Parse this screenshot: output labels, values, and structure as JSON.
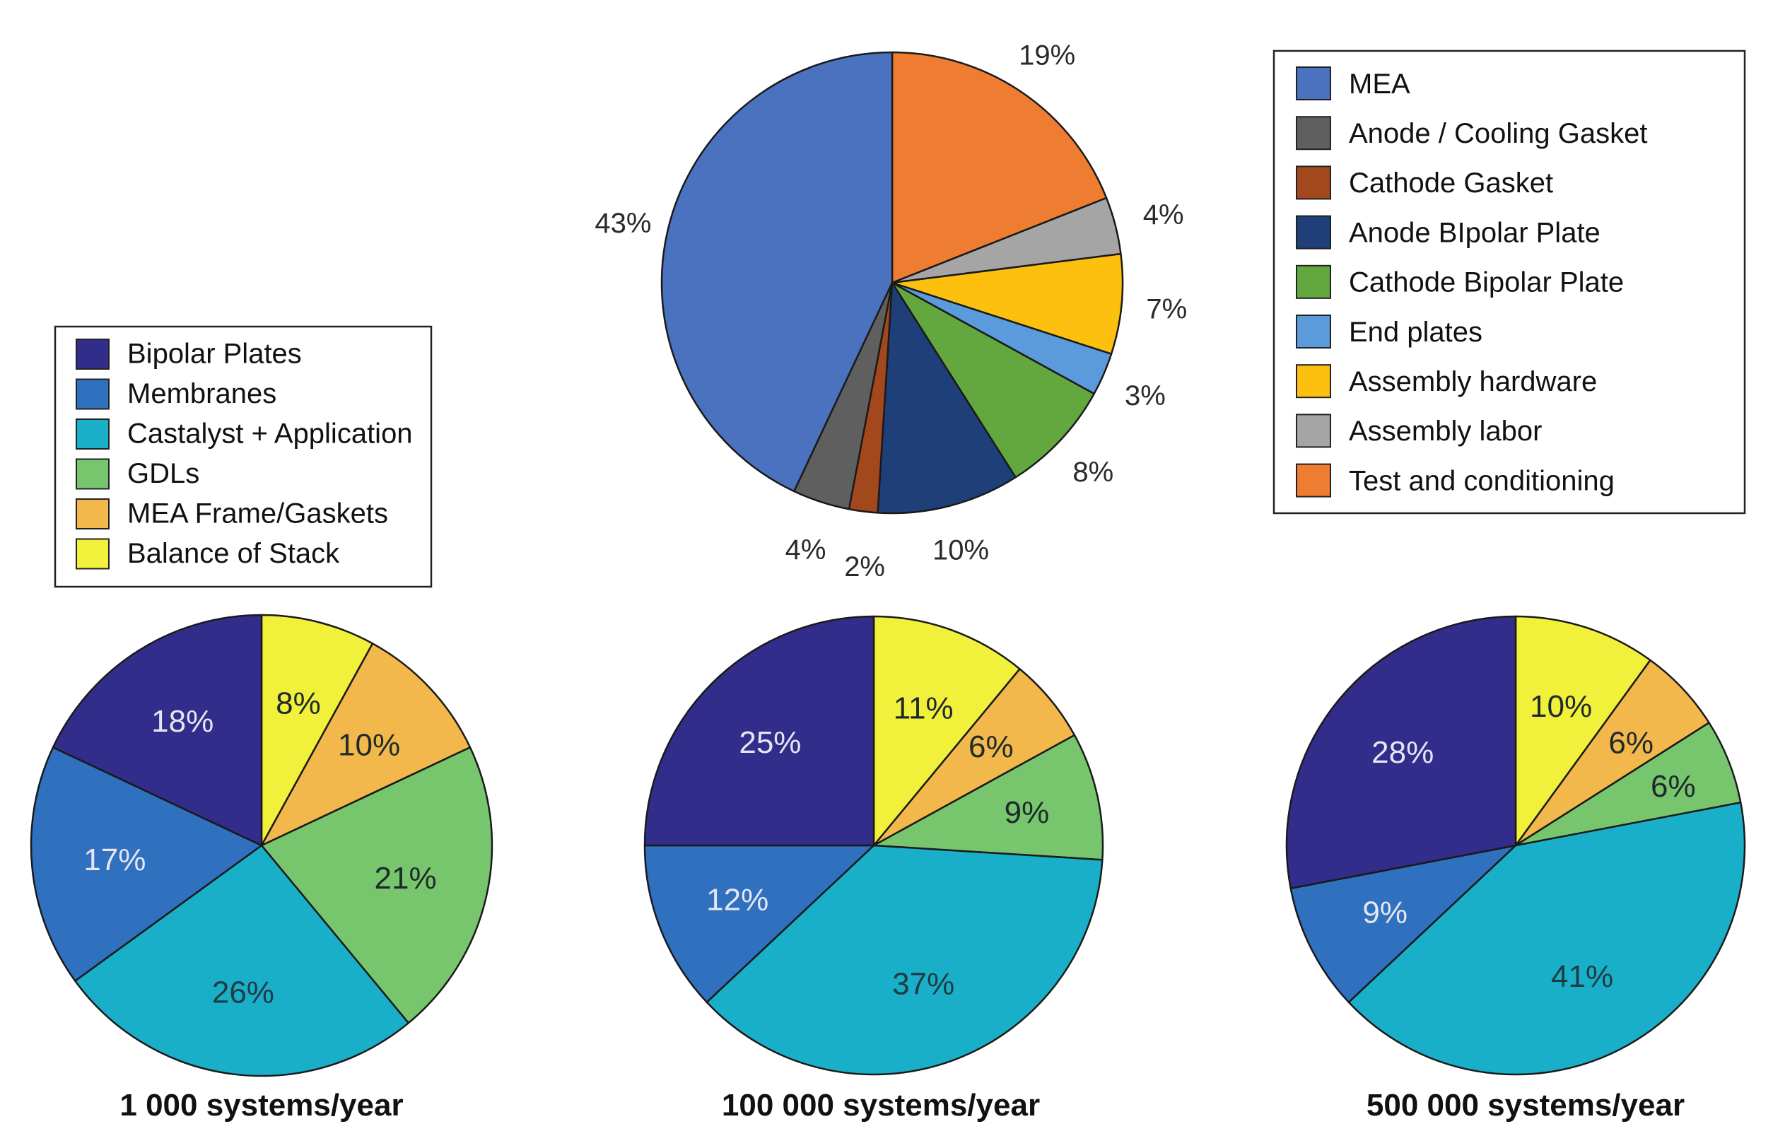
{
  "colors": {
    "MEA": "#4A72BE",
    "Anode / Cooling Gasket": "#5F5F5F",
    "Cathode Gasket": "#A3471C",
    "Anode BIpolar Plate": "#1F3F78",
    "Cathode Bipolar Plate": "#62A83F",
    "End plates": "#5B9BDB",
    "Assembly hardware": "#FDC00F",
    "Assembly labor": "#A5A5A5",
    "Test and conditioning": "#EE7D31",
    "Bipolar Plates": "#322D8A",
    "Membranes": "#2F70BF",
    "Castalyst + Application": "#1AAFC8",
    "GDLs": "#77C66E",
    "MEA Frame/Gaskets": "#F2B84B",
    "Balance of Stack": "#F1F03A"
  },
  "chart_data": [
    {
      "type": "pie",
      "id": "stack-assembly",
      "title": "",
      "categories": [
        "Test and conditioning",
        "Assembly labor",
        "Assembly hardware",
        "End plates",
        "Cathode Bipolar Plate",
        "Anode BIpolar Plate",
        "Cathode Gasket",
        "Anode / Cooling Gasket",
        "MEA"
      ],
      "values": [
        19,
        4,
        7,
        3,
        8,
        10,
        2,
        4,
        43
      ],
      "labels": [
        "19%",
        "4%",
        "7%",
        "3%",
        "8%",
        "10%",
        "2%",
        "4%",
        "43%"
      ],
      "label_placement": "outside"
    },
    {
      "type": "pie",
      "id": "pie-1000",
      "title": "1 000 systems/year",
      "categories": [
        "Balance of Stack",
        "MEA Frame/Gaskets",
        "GDLs",
        "Castalyst + Application",
        "Membranes",
        "Bipolar Plates"
      ],
      "values": [
        8,
        10,
        21,
        26,
        17,
        18
      ],
      "labels": [
        "8%",
        "10%",
        "21%",
        "26%",
        "17%",
        "18%"
      ],
      "label_placement": "inside"
    },
    {
      "type": "pie",
      "id": "pie-100000",
      "title": "100 000 systems/year",
      "categories": [
        "Balance of Stack",
        "MEA Frame/Gaskets",
        "GDLs",
        "Castalyst + Application",
        "Membranes",
        "Bipolar Plates"
      ],
      "values": [
        11,
        6,
        9,
        37,
        12,
        25
      ],
      "labels": [
        "11%",
        "6%",
        "9%",
        "37%",
        "12%",
        "25%"
      ],
      "label_placement": "inside"
    },
    {
      "type": "pie",
      "id": "pie-500000",
      "title": "500 000 systems/year",
      "categories": [
        "Balance of Stack",
        "MEA Frame/Gaskets",
        "GDLs",
        "Castalyst + Application",
        "Membranes",
        "Bipolar Plates"
      ],
      "values": [
        10,
        6,
        6,
        41,
        9,
        28
      ],
      "labels": [
        "10%",
        "6%",
        "6%",
        "41%",
        "9%",
        "28%"
      ],
      "label_placement": "inside"
    }
  ],
  "legends": {
    "stack": [
      "MEA",
      "Anode / Cooling Gasket",
      "Cathode Gasket",
      "Anode BIpolar Plate",
      "Cathode Bipolar Plate",
      "End plates",
      "Assembly hardware",
      "Assembly labor",
      "Test and conditioning"
    ],
    "mea": [
      "Bipolar Plates",
      "Membranes",
      "Castalyst + Application",
      "GDLs",
      "MEA Frame/Gaskets",
      "Balance of Stack"
    ]
  }
}
